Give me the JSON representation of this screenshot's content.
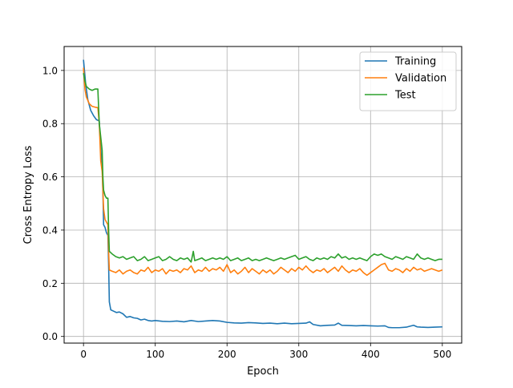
{
  "chart_data": {
    "type": "line",
    "title": "",
    "xlabel": "Epoch",
    "ylabel": "Cross Entropy Loss",
    "xlim": [
      -27,
      527
    ],
    "ylim": [
      -0.025,
      1.09
    ],
    "xticks": [
      0,
      100,
      200,
      300,
      400,
      500
    ],
    "yticks": [
      0.0,
      0.2,
      0.4,
      0.6,
      0.8,
      1.0
    ],
    "xtick_labels": [
      "0",
      "100",
      "200",
      "300",
      "400",
      "500"
    ],
    "ytick_labels": [
      "0.0",
      "0.2",
      "0.4",
      "0.6",
      "0.8",
      "1.0"
    ],
    "grid": true,
    "legend_position": "top-right",
    "series": [
      {
        "name": "Training",
        "color": "#1f77b4",
        "points": [
          [
            0,
            1.04
          ],
          [
            3,
            0.95
          ],
          [
            6,
            0.89
          ],
          [
            10,
            0.85
          ],
          [
            14,
            0.83
          ],
          [
            18,
            0.815
          ],
          [
            22,
            0.81
          ],
          [
            24,
            0.7
          ],
          [
            26,
            0.65
          ],
          [
            27,
            0.55
          ],
          [
            28,
            0.42
          ],
          [
            30,
            0.41
          ],
          [
            32,
            0.39
          ],
          [
            34,
            0.38
          ],
          [
            35,
            0.27
          ],
          [
            36,
            0.13
          ],
          [
            38,
            0.1
          ],
          [
            42,
            0.095
          ],
          [
            46,
            0.09
          ],
          [
            50,
            0.092
          ],
          [
            55,
            0.085
          ],
          [
            60,
            0.072
          ],
          [
            65,
            0.075
          ],
          [
            70,
            0.07
          ],
          [
            75,
            0.068
          ],
          [
            80,
            0.062
          ],
          [
            85,
            0.065
          ],
          [
            90,
            0.06
          ],
          [
            95,
            0.058
          ],
          [
            100,
            0.06
          ],
          [
            110,
            0.057
          ],
          [
            120,
            0.056
          ],
          [
            130,
            0.058
          ],
          [
            140,
            0.055
          ],
          [
            150,
            0.06
          ],
          [
            160,
            0.056
          ],
          [
            170,
            0.058
          ],
          [
            180,
            0.06
          ],
          [
            190,
            0.058
          ],
          [
            200,
            0.053
          ],
          [
            210,
            0.051
          ],
          [
            220,
            0.05
          ],
          [
            230,
            0.052
          ],
          [
            240,
            0.051
          ],
          [
            250,
            0.049
          ],
          [
            260,
            0.05
          ],
          [
            270,
            0.048
          ],
          [
            280,
            0.05
          ],
          [
            290,
            0.048
          ],
          [
            300,
            0.049
          ],
          [
            310,
            0.05
          ],
          [
            315,
            0.055
          ],
          [
            320,
            0.045
          ],
          [
            330,
            0.04
          ],
          [
            340,
            0.042
          ],
          [
            350,
            0.043
          ],
          [
            355,
            0.05
          ],
          [
            360,
            0.042
          ],
          [
            370,
            0.041
          ],
          [
            380,
            0.04
          ],
          [
            390,
            0.041
          ],
          [
            400,
            0.04
          ],
          [
            410,
            0.039
          ],
          [
            420,
            0.04
          ],
          [
            425,
            0.034
          ],
          [
            430,
            0.033
          ],
          [
            440,
            0.033
          ],
          [
            450,
            0.035
          ],
          [
            460,
            0.042
          ],
          [
            465,
            0.036
          ],
          [
            470,
            0.035
          ],
          [
            480,
            0.034
          ],
          [
            490,
            0.035
          ],
          [
            500,
            0.036
          ]
        ]
      },
      {
        "name": "Validation",
        "color": "#ff7f0e",
        "points": [
          [
            0,
            1.01
          ],
          [
            2,
            0.93
          ],
          [
            4,
            0.9
          ],
          [
            8,
            0.875
          ],
          [
            12,
            0.865
          ],
          [
            16,
            0.862
          ],
          [
            20,
            0.86
          ],
          [
            22,
            0.8
          ],
          [
            24,
            0.66
          ],
          [
            26,
            0.62
          ],
          [
            28,
            0.48
          ],
          [
            30,
            0.44
          ],
          [
            32,
            0.43
          ],
          [
            34,
            0.42
          ],
          [
            35,
            0.32
          ],
          [
            36,
            0.25
          ],
          [
            40,
            0.245
          ],
          [
            45,
            0.24
          ],
          [
            50,
            0.25
          ],
          [
            55,
            0.235
          ],
          [
            60,
            0.245
          ],
          [
            65,
            0.25
          ],
          [
            70,
            0.24
          ],
          [
            75,
            0.235
          ],
          [
            80,
            0.25
          ],
          [
            85,
            0.245
          ],
          [
            90,
            0.26
          ],
          [
            95,
            0.24
          ],
          [
            100,
            0.25
          ],
          [
            105,
            0.245
          ],
          [
            110,
            0.255
          ],
          [
            115,
            0.235
          ],
          [
            120,
            0.25
          ],
          [
            125,
            0.245
          ],
          [
            130,
            0.25
          ],
          [
            135,
            0.24
          ],
          [
            140,
            0.255
          ],
          [
            145,
            0.25
          ],
          [
            150,
            0.265
          ],
          [
            155,
            0.24
          ],
          [
            160,
            0.25
          ],
          [
            165,
            0.245
          ],
          [
            170,
            0.26
          ],
          [
            175,
            0.245
          ],
          [
            180,
            0.255
          ],
          [
            185,
            0.25
          ],
          [
            190,
            0.26
          ],
          [
            195,
            0.245
          ],
          [
            200,
            0.27
          ],
          [
            205,
            0.24
          ],
          [
            210,
            0.25
          ],
          [
            215,
            0.235
          ],
          [
            220,
            0.245
          ],
          [
            225,
            0.26
          ],
          [
            230,
            0.24
          ],
          [
            235,
            0.255
          ],
          [
            240,
            0.245
          ],
          [
            245,
            0.235
          ],
          [
            250,
            0.25
          ],
          [
            255,
            0.24
          ],
          [
            260,
            0.25
          ],
          [
            265,
            0.235
          ],
          [
            270,
            0.245
          ],
          [
            275,
            0.26
          ],
          [
            280,
            0.25
          ],
          [
            285,
            0.24
          ],
          [
            290,
            0.255
          ],
          [
            295,
            0.245
          ],
          [
            300,
            0.26
          ],
          [
            305,
            0.25
          ],
          [
            310,
            0.265
          ],
          [
            315,
            0.25
          ],
          [
            320,
            0.24
          ],
          [
            325,
            0.25
          ],
          [
            330,
            0.245
          ],
          [
            335,
            0.255
          ],
          [
            340,
            0.24
          ],
          [
            345,
            0.25
          ],
          [
            350,
            0.26
          ],
          [
            355,
            0.245
          ],
          [
            360,
            0.265
          ],
          [
            365,
            0.25
          ],
          [
            370,
            0.24
          ],
          [
            375,
            0.25
          ],
          [
            380,
            0.245
          ],
          [
            385,
            0.255
          ],
          [
            390,
            0.24
          ],
          [
            395,
            0.23
          ],
          [
            400,
            0.24
          ],
          [
            405,
            0.25
          ],
          [
            410,
            0.26
          ],
          [
            415,
            0.27
          ],
          [
            420,
            0.275
          ],
          [
            425,
            0.25
          ],
          [
            430,
            0.245
          ],
          [
            435,
            0.255
          ],
          [
            440,
            0.25
          ],
          [
            445,
            0.24
          ],
          [
            450,
            0.255
          ],
          [
            455,
            0.245
          ],
          [
            460,
            0.26
          ],
          [
            465,
            0.25
          ],
          [
            470,
            0.255
          ],
          [
            475,
            0.245
          ],
          [
            480,
            0.25
          ],
          [
            485,
            0.255
          ],
          [
            490,
            0.25
          ],
          [
            495,
            0.245
          ],
          [
            500,
            0.25
          ]
        ]
      },
      {
        "name": "Test",
        "color": "#2ca02c",
        "points": [
          [
            0,
            0.99
          ],
          [
            2,
            0.96
          ],
          [
            4,
            0.94
          ],
          [
            8,
            0.93
          ],
          [
            12,
            0.925
          ],
          [
            16,
            0.93
          ],
          [
            20,
            0.93
          ],
          [
            22,
            0.8
          ],
          [
            24,
            0.75
          ],
          [
            26,
            0.7
          ],
          [
            27,
            0.6
          ],
          [
            28,
            0.55
          ],
          [
            30,
            0.53
          ],
          [
            32,
            0.52
          ],
          [
            34,
            0.52
          ],
          [
            35,
            0.4
          ],
          [
            36,
            0.32
          ],
          [
            40,
            0.31
          ],
          [
            45,
            0.3
          ],
          [
            50,
            0.295
          ],
          [
            55,
            0.3
          ],
          [
            60,
            0.29
          ],
          [
            65,
            0.295
          ],
          [
            70,
            0.3
          ],
          [
            75,
            0.285
          ],
          [
            80,
            0.29
          ],
          [
            85,
            0.3
          ],
          [
            90,
            0.285
          ],
          [
            95,
            0.29
          ],
          [
            100,
            0.295
          ],
          [
            105,
            0.3
          ],
          [
            110,
            0.285
          ],
          [
            115,
            0.29
          ],
          [
            120,
            0.3
          ],
          [
            125,
            0.29
          ],
          [
            130,
            0.285
          ],
          [
            135,
            0.295
          ],
          [
            140,
            0.29
          ],
          [
            145,
            0.295
          ],
          [
            150,
            0.28
          ],
          [
            153,
            0.32
          ],
          [
            155,
            0.285
          ],
          [
            160,
            0.29
          ],
          [
            165,
            0.295
          ],
          [
            170,
            0.285
          ],
          [
            175,
            0.29
          ],
          [
            180,
            0.295
          ],
          [
            185,
            0.29
          ],
          [
            190,
            0.295
          ],
          [
            195,
            0.29
          ],
          [
            200,
            0.3
          ],
          [
            205,
            0.285
          ],
          [
            210,
            0.29
          ],
          [
            215,
            0.295
          ],
          [
            220,
            0.285
          ],
          [
            225,
            0.29
          ],
          [
            230,
            0.295
          ],
          [
            235,
            0.285
          ],
          [
            240,
            0.29
          ],
          [
            245,
            0.285
          ],
          [
            250,
            0.29
          ],
          [
            255,
            0.295
          ],
          [
            260,
            0.29
          ],
          [
            265,
            0.285
          ],
          [
            270,
            0.29
          ],
          [
            275,
            0.295
          ],
          [
            280,
            0.29
          ],
          [
            285,
            0.295
          ],
          [
            290,
            0.3
          ],
          [
            295,
            0.305
          ],
          [
            300,
            0.29
          ],
          [
            305,
            0.295
          ],
          [
            310,
            0.3
          ],
          [
            315,
            0.29
          ],
          [
            320,
            0.285
          ],
          [
            325,
            0.295
          ],
          [
            330,
            0.29
          ],
          [
            335,
            0.295
          ],
          [
            340,
            0.29
          ],
          [
            345,
            0.3
          ],
          [
            350,
            0.295
          ],
          [
            355,
            0.31
          ],
          [
            360,
            0.295
          ],
          [
            365,
            0.3
          ],
          [
            370,
            0.29
          ],
          [
            375,
            0.295
          ],
          [
            380,
            0.29
          ],
          [
            385,
            0.295
          ],
          [
            390,
            0.29
          ],
          [
            395,
            0.285
          ],
          [
            400,
            0.3
          ],
          [
            405,
            0.31
          ],
          [
            410,
            0.305
          ],
          [
            415,
            0.31
          ],
          [
            420,
            0.3
          ],
          [
            425,
            0.295
          ],
          [
            430,
            0.29
          ],
          [
            435,
            0.3
          ],
          [
            440,
            0.295
          ],
          [
            445,
            0.29
          ],
          [
            450,
            0.3
          ],
          [
            455,
            0.295
          ],
          [
            460,
            0.29
          ],
          [
            465,
            0.31
          ],
          [
            470,
            0.295
          ],
          [
            475,
            0.29
          ],
          [
            480,
            0.295
          ],
          [
            485,
            0.29
          ],
          [
            490,
            0.285
          ],
          [
            495,
            0.29
          ],
          [
            500,
            0.29
          ]
        ]
      }
    ]
  }
}
